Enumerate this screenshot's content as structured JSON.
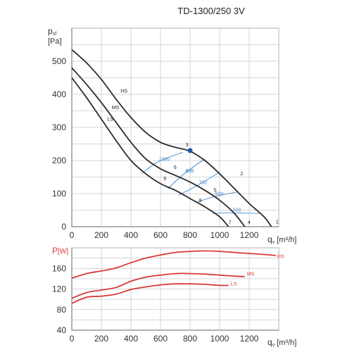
{
  "title": "TD-1300/250 3V",
  "colors": {
    "pressure_curve": "#2b2b2b",
    "power_curve": "#d93a3a",
    "efficiency_line": "#4a8dc9",
    "operating_point": "#2456a8",
    "grid": "#c8c8c8"
  },
  "chart_data": [
    {
      "type": "line",
      "ylabel": "p",
      "ylabel_sub": "sf",
      "yunit": "[Pa]",
      "xlabel": "q",
      "xlabel_sub": "v",
      "xunit": "[m³/h]",
      "xlim": [
        0,
        1400
      ],
      "ylim": [
        0,
        600
      ],
      "xticks": [
        0,
        200,
        400,
        600,
        800,
        1000,
        1200
      ],
      "yticks": [
        0,
        100,
        200,
        300,
        400,
        500
      ],
      "grid": true,
      "series": [
        {
          "name": "HS",
          "x": [
            0,
            100,
            200,
            300,
            400,
            500,
            600,
            700,
            800,
            900,
            1000,
            1100,
            1200,
            1300,
            1350
          ],
          "y": [
            535,
            495,
            445,
            385,
            330,
            285,
            255,
            240,
            228,
            200,
            160,
            115,
            70,
            30,
            0
          ]
        },
        {
          "name": "MS",
          "x": [
            0,
            100,
            200,
            300,
            400,
            500,
            600,
            700,
            800,
            900,
            1000,
            1100,
            1170
          ],
          "y": [
            480,
            430,
            375,
            315,
            255,
            205,
            175,
            155,
            135,
            110,
            80,
            40,
            0
          ]
        },
        {
          "name": "LS",
          "x": [
            0,
            100,
            200,
            300,
            400,
            500,
            600,
            700,
            800,
            900,
            1000,
            1060
          ],
          "y": [
            450,
            390,
            325,
            260,
            200,
            160,
            130,
            110,
            85,
            60,
            30,
            0
          ]
        }
      ],
      "efficiency_lines": [
        {
          "label": "1000",
          "x": [
            470,
            580,
            750
          ],
          "y": [
            160,
            195,
            225
          ]
        },
        {
          "label": "900",
          "x": [
            650,
            760,
            900
          ],
          "y": [
            115,
            160,
            205
          ]
        },
        {
          "label": "800",
          "x": [
            650,
            760,
            900
          ],
          "y": [
            115,
            160,
            205
          ]
        },
        {
          "label": "700",
          "x": [
            720,
            850,
            1000
          ],
          "y": [
            95,
            125,
            165
          ]
        },
        {
          "label": "600",
          "x": [
            850,
            960,
            1120
          ],
          "y": [
            75,
            90,
            105
          ]
        },
        {
          "label": "500",
          "x": [
            950,
            1080,
            1280
          ],
          "y": [
            40,
            42,
            40
          ]
        }
      ],
      "curve_labels": [
        {
          "text": "HS",
          "x": 330,
          "y": 405
        },
        {
          "text": "MS",
          "x": 270,
          "y": 355
        },
        {
          "text": "LS",
          "x": 240,
          "y": 320
        }
      ],
      "point_labels": [
        {
          "text": "1",
          "x": 1380,
          "y": 10
        },
        {
          "text": "2",
          "x": 1140,
          "y": 155
        },
        {
          "text": "3",
          "x": 770,
          "y": 243
        },
        {
          "text": "4",
          "x": 1190,
          "y": 8
        },
        {
          "text": "5",
          "x": 960,
          "y": 105
        },
        {
          "text": "6",
          "x": 690,
          "y": 175
        },
        {
          "text": "7",
          "x": 1060,
          "y": 8
        },
        {
          "text": "8",
          "x": 860,
          "y": 75
        },
        {
          "text": "9",
          "x": 620,
          "y": 140
        }
      ],
      "operating_point": {
        "x": 800,
        "y": 230
      }
    },
    {
      "type": "line",
      "ylabel": "P",
      "yunit": "[W]",
      "xlabel": "q",
      "xlabel_sub": "v",
      "xunit": "[m³/h]",
      "xlim": [
        0,
        1400
      ],
      "ylim": [
        40,
        200
      ],
      "xticks": [
        0,
        200,
        400,
        600,
        800,
        1000,
        1200
      ],
      "yticks": [
        40,
        80,
        120,
        160
      ],
      "grid": true,
      "series": [
        {
          "name": "HS",
          "x": [
            0,
            100,
            200,
            300,
            400,
            500,
            600,
            700,
            800,
            900,
            1000,
            1100,
            1200,
            1300,
            1380
          ],
          "y": [
            141,
            150,
            155,
            161,
            171,
            180,
            186,
            191,
            193,
            194,
            193,
            191,
            189,
            187,
            185
          ]
        },
        {
          "name": "MS",
          "x": [
            0,
            100,
            200,
            300,
            400,
            500,
            600,
            700,
            800,
            900,
            1000,
            1100,
            1170
          ],
          "y": [
            102,
            113,
            118,
            123,
            135,
            143,
            147,
            150,
            150,
            149,
            147,
            145,
            144
          ]
        },
        {
          "name": "LS",
          "x": [
            0,
            100,
            200,
            300,
            400,
            500,
            600,
            700,
            800,
            900,
            1000,
            1060
          ],
          "y": [
            92,
            104,
            106,
            110,
            119,
            124,
            128,
            130,
            130,
            129,
            127,
            127
          ]
        }
      ],
      "curve_labels": [
        {
          "text": "HS",
          "x": 1390,
          "y": 180
        },
        {
          "text": "MS",
          "x": 1185,
          "y": 146
        },
        {
          "text": "LS",
          "x": 1075,
          "y": 127
        }
      ]
    }
  ]
}
